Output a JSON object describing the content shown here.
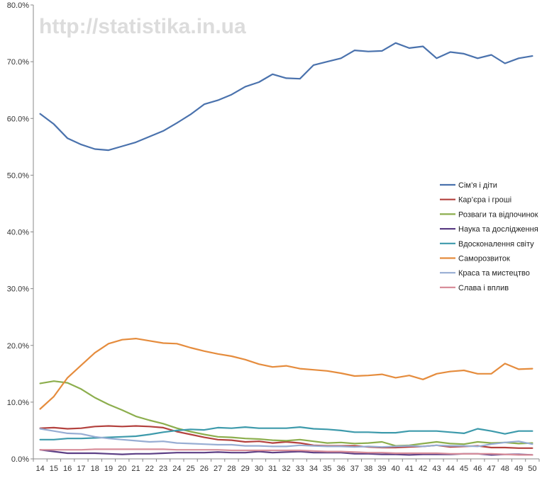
{
  "watermark": "http://statistika.in.ua",
  "chart_data": {
    "type": "line",
    "title": "",
    "xlabel": "",
    "ylabel": "",
    "ylim": [
      0,
      80
    ],
    "y_ticks": [
      "0.0%",
      "10.0%",
      "20.0%",
      "30.0%",
      "40.0%",
      "50.0%",
      "60.0%",
      "70.0%",
      "80.0%"
    ],
    "grid": "off",
    "legend_position": "right",
    "x": [
      14,
      15,
      16,
      17,
      18,
      19,
      20,
      21,
      22,
      23,
      24,
      25,
      26,
      27,
      28,
      29,
      30,
      31,
      32,
      33,
      34,
      35,
      36,
      37,
      38,
      39,
      40,
      41,
      42,
      43,
      44,
      45,
      46,
      47,
      48,
      49,
      50
    ],
    "series": [
      {
        "name": "Сім’я і діти",
        "color": "#4a72ad",
        "values": [
          60.8,
          59.0,
          56.5,
          55.4,
          54.6,
          54.4,
          55.1,
          55.8,
          56.8,
          57.8,
          59.2,
          60.7,
          62.5,
          63.2,
          64.2,
          65.6,
          66.4,
          67.8,
          67.1,
          67.0,
          69.4,
          70.0,
          70.6,
          72.0,
          71.8,
          71.9,
          73.3,
          72.4,
          72.7,
          70.6,
          71.7,
          71.4,
          70.6,
          71.2,
          69.7,
          70.6,
          71.0
        ]
      },
      {
        "name": "Кар’єра і гроші",
        "color": "#b3413e",
        "values": [
          5.4,
          5.5,
          5.3,
          5.4,
          5.7,
          5.8,
          5.7,
          5.8,
          5.7,
          5.5,
          4.8,
          4.3,
          3.8,
          3.4,
          3.3,
          3.0,
          3.1,
          2.8,
          3.0,
          2.8,
          2.4,
          2.3,
          2.3,
          2.3,
          2.1,
          2.0,
          2.0,
          2.1,
          2.2,
          2.4,
          2.1,
          2.2,
          2.3,
          2.0,
          2.0,
          1.9,
          1.9
        ]
      },
      {
        "name": "Розваги та відпочинок",
        "color": "#8cae4d",
        "values": [
          13.3,
          13.7,
          13.4,
          12.3,
          10.8,
          9.6,
          8.6,
          7.5,
          6.8,
          6.2,
          5.4,
          4.8,
          4.3,
          3.9,
          3.8,
          3.6,
          3.5,
          3.3,
          3.2,
          3.4,
          3.1,
          2.8,
          2.9,
          2.7,
          2.8,
          3.0,
          2.3,
          2.4,
          2.7,
          3.0,
          2.7,
          2.6,
          3.0,
          2.8,
          2.9,
          2.7,
          2.8
        ]
      },
      {
        "name": "Наука та дослідження",
        "color": "#5c3f85",
        "values": [
          1.6,
          1.3,
          1.0,
          1.0,
          1.0,
          0.9,
          0.8,
          0.9,
          0.9,
          1.0,
          1.1,
          1.1,
          1.1,
          1.2,
          1.1,
          1.1,
          1.3,
          1.1,
          1.2,
          1.3,
          1.1,
          1.1,
          1.1,
          0.9,
          0.9,
          0.8,
          0.8,
          0.7,
          0.8,
          0.8,
          0.8,
          0.9,
          0.9,
          0.7,
          0.8,
          0.8,
          0.7
        ]
      },
      {
        "name": "Вдосконалення світу",
        "color": "#3d9aab",
        "values": [
          3.4,
          3.4,
          3.6,
          3.6,
          3.7,
          3.8,
          3.9,
          4.0,
          4.3,
          4.7,
          5.0,
          5.2,
          5.1,
          5.5,
          5.4,
          5.6,
          5.4,
          5.4,
          5.4,
          5.6,
          5.3,
          5.2,
          5.0,
          4.7,
          4.7,
          4.6,
          4.6,
          4.9,
          4.9,
          4.9,
          4.7,
          4.5,
          5.3,
          4.9,
          4.4,
          4.9,
          4.9
        ]
      },
      {
        "name": "Саморозвиток",
        "color": "#e58c3d",
        "values": [
          8.8,
          11.0,
          14.3,
          16.5,
          18.7,
          20.3,
          21.0,
          21.2,
          20.8,
          20.4,
          20.3,
          19.6,
          19.0,
          18.5,
          18.1,
          17.5,
          16.7,
          16.2,
          16.4,
          15.9,
          15.7,
          15.5,
          15.1,
          14.6,
          14.7,
          14.9,
          14.3,
          14.7,
          14.0,
          15.0,
          15.4,
          15.6,
          15.0,
          15.0,
          16.8,
          15.8,
          15.9
        ]
      },
      {
        "name": "Краса та мистецтво",
        "color": "#97add3",
        "values": [
          5.3,
          4.9,
          4.5,
          4.4,
          3.9,
          3.6,
          3.4,
          3.2,
          3.0,
          3.1,
          2.8,
          2.7,
          2.6,
          2.5,
          2.5,
          2.3,
          2.3,
          2.2,
          2.2,
          2.4,
          2.3,
          2.2,
          2.2,
          2.1,
          2.2,
          2.1,
          2.2,
          2.3,
          2.2,
          2.4,
          2.3,
          2.3,
          2.2,
          2.6,
          2.9,
          3.1,
          2.6
        ]
      },
      {
        "name": "Слава і вплив",
        "color": "#d88e9a",
        "values": [
          1.6,
          1.6,
          1.6,
          1.6,
          1.7,
          1.7,
          1.7,
          1.7,
          1.7,
          1.7,
          1.6,
          1.6,
          1.6,
          1.6,
          1.5,
          1.5,
          1.5,
          1.5,
          1.5,
          1.5,
          1.4,
          1.3,
          1.3,
          1.2,
          1.1,
          1.1,
          1.0,
          1.0,
          1.0,
          1.0,
          0.9,
          0.9,
          0.9,
          0.9,
          0.8,
          0.7,
          0.7
        ]
      }
    ]
  }
}
